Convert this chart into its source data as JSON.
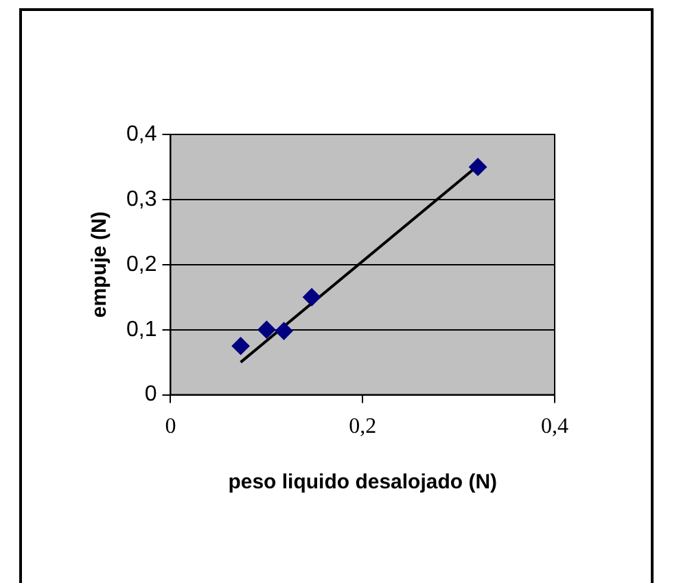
{
  "chart_data": {
    "type": "scatter",
    "xlabel": "peso liquido desalojado (N)",
    "ylabel": "empuje (N)",
    "xlim": [
      0,
      0.4
    ],
    "xticks": [
      {
        "value": 0,
        "label": "0"
      },
      {
        "value": 0.2,
        "label": "0,2"
      },
      {
        "value": 0.4,
        "label": "0,4"
      }
    ],
    "ylim": [
      0,
      0.4
    ],
    "yticks": [
      {
        "value": 0,
        "label": "0"
      },
      {
        "value": 0.1,
        "label": "0,1"
      },
      {
        "value": 0.2,
        "label": "0,2"
      },
      {
        "value": 0.3,
        "label": "0,3"
      },
      {
        "value": 0.4,
        "label": "0,4"
      }
    ],
    "grid": "y",
    "legend": false,
    "series": [
      {
        "color": "#000080",
        "marker": "diamond",
        "x": [
          0.073,
          0.1,
          0.118,
          0.147,
          0.32
        ],
        "values": [
          0.075,
          0.1,
          0.098,
          0.15,
          0.35
        ]
      },
      {
        "type": "line",
        "color": "#000000",
        "marker": "none",
        "line_style": "solid",
        "x": [
          0.073,
          0.32
        ],
        "values": [
          0.05,
          0.352
        ]
      }
    ]
  }
}
